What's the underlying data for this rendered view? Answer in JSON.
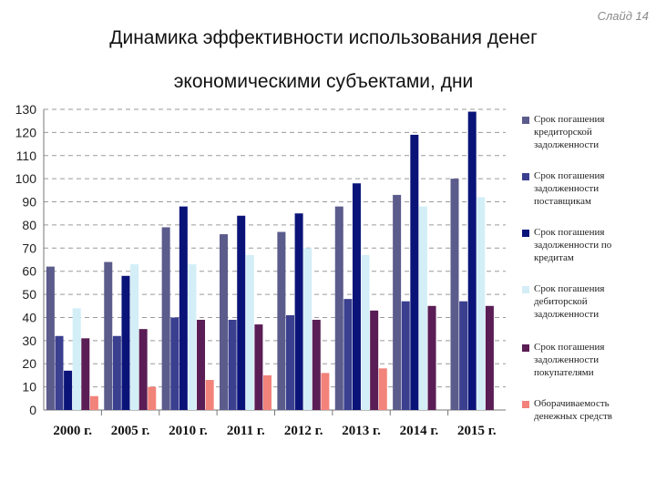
{
  "slide_label": "Слайд 14",
  "title_line1": "Динамика эффективности использования денег",
  "title_line2": "экономическими субъектами, дни",
  "chart_data": {
    "type": "bar",
    "title": "Динамика эффективности использования денег экономическими субъектами, дни",
    "categories": [
      "2000 г.",
      "2005 г.",
      "2010 г.",
      "2011 г.",
      "2012 г.",
      "2013 г.",
      "2014 г.",
      "2015 г."
    ],
    "ylim": [
      0,
      130
    ],
    "yticks": [
      0,
      10,
      20,
      30,
      40,
      50,
      60,
      70,
      80,
      90,
      100,
      110,
      120,
      130
    ],
    "grid": true,
    "legend_position": "right",
    "series": [
      {
        "name": "Срок погашения кредиторской задолженности",
        "color": "#5b5b8c",
        "values": [
          62,
          64,
          79,
          76,
          77,
          88,
          93,
          100
        ]
      },
      {
        "name": "Срок погашения задолженности поставщикам",
        "color": "#3a3f8f",
        "values": [
          32,
          32,
          40,
          39,
          41,
          48,
          47,
          47
        ]
      },
      {
        "name": "Срок погашения задолженности по кредитам",
        "color": "#0a1478",
        "values": [
          17,
          58,
          88,
          84,
          85,
          98,
          119,
          129
        ]
      },
      {
        "name": "Срок погашения дебиторской задолженности",
        "color": "#d3eef7",
        "values": [
          44,
          63,
          63,
          67,
          70,
          67,
          88,
          92
        ]
      },
      {
        "name": "Срок погашения задолженности покупателями",
        "color": "#5a1d55",
        "values": [
          31,
          35,
          39,
          37,
          39,
          43,
          45,
          45
        ]
      },
      {
        "name": "Оборачиваемость денежных средств",
        "color": "#f2837a",
        "values": [
          6,
          10,
          13,
          15,
          16,
          18,
          null,
          null
        ]
      }
    ]
  }
}
